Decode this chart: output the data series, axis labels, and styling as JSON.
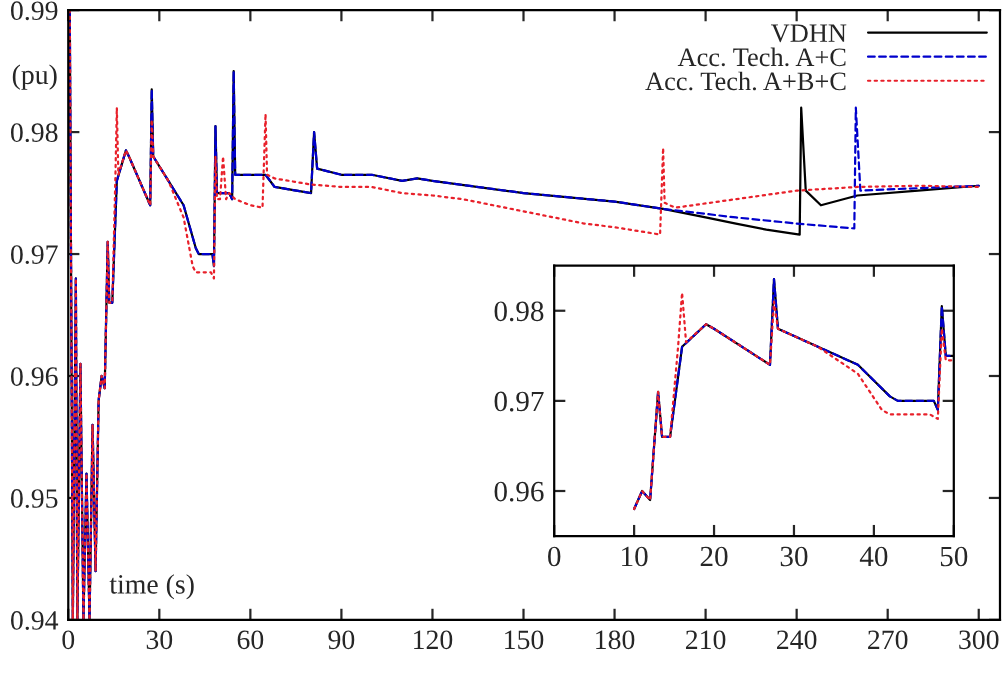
{
  "chart_data": [
    {
      "type": "line",
      "xlabel": "time (s)",
      "ylabel": "(pu)",
      "xlim": [
        0,
        307
      ],
      "ylim": [
        0.94,
        0.99
      ],
      "xticks": [
        0,
        30,
        60,
        90,
        120,
        150,
        180,
        210,
        240,
        270,
        300
      ],
      "yticks": [
        0.94,
        0.95,
        0.96,
        0.97,
        0.98,
        0.99
      ],
      "legend": "top right",
      "grid": false,
      "series": [
        {
          "name": "VDHN",
          "color": "#000000",
          "line_style": "solid",
          "x": [
            0.5,
            1.5,
            2.5,
            3,
            4,
            5,
            6,
            7,
            8,
            9,
            10,
            11,
            12,
            13,
            13.5,
            14.5,
            16,
            19,
            20,
            27,
            27.5,
            28,
            33,
            38,
            42,
            43,
            47.5,
            48,
            48.5,
            49,
            53,
            54,
            54.5,
            55,
            65,
            68,
            80,
            81,
            82,
            90,
            100,
            110,
            115,
            120,
            150,
            180,
            196,
            210,
            220,
            230,
            241,
            241.5,
            243,
            248,
            260,
            280,
            300
          ],
          "values": [
            0.99,
            0.94,
            0.968,
            0.94,
            0.961,
            0.94,
            0.952,
            0.94,
            0.956,
            0.944,
            0.958,
            0.96,
            0.959,
            0.971,
            0.966,
            0.966,
            0.976,
            0.9785,
            0.978,
            0.974,
            0.9835,
            0.978,
            0.976,
            0.974,
            0.9705,
            0.97,
            0.97,
            0.969,
            0.9805,
            0.975,
            0.975,
            0.9745,
            0.985,
            0.9765,
            0.9765,
            0.9755,
            0.975,
            0.98,
            0.977,
            0.9765,
            0.9765,
            0.976,
            0.9762,
            0.976,
            0.975,
            0.9743,
            0.9737,
            0.973,
            0.9725,
            0.972,
            0.9716,
            0.982,
            0.9752,
            0.974,
            0.9748,
            0.9752,
            0.9756
          ]
        },
        {
          "name": "Acc. Tech. A+C",
          "color": "#0000cc",
          "line_style": "dashed",
          "x": [
            0.5,
            1.5,
            2.5,
            3,
            4,
            5,
            6,
            7,
            8,
            9,
            10,
            11,
            12,
            13,
            13.5,
            14.5,
            16,
            19,
            20,
            27,
            27.5,
            28,
            33,
            38,
            42,
            43,
            47.5,
            48,
            48.5,
            49,
            53,
            54,
            54.5,
            55,
            65,
            68,
            80,
            81,
            82,
            90,
            100,
            110,
            115,
            120,
            150,
            180,
            196,
            220,
            240,
            259,
            259.5,
            261,
            280,
            300
          ],
          "values": [
            0.99,
            0.94,
            0.968,
            0.94,
            0.961,
            0.94,
            0.952,
            0.94,
            0.956,
            0.944,
            0.958,
            0.96,
            0.959,
            0.971,
            0.966,
            0.966,
            0.976,
            0.9785,
            0.978,
            0.974,
            0.9835,
            0.978,
            0.976,
            0.974,
            0.9705,
            0.97,
            0.97,
            0.969,
            0.9805,
            0.975,
            0.975,
            0.9745,
            0.985,
            0.9765,
            0.9765,
            0.9755,
            0.975,
            0.98,
            0.977,
            0.9765,
            0.9765,
            0.976,
            0.9762,
            0.976,
            0.975,
            0.9743,
            0.9737,
            0.973,
            0.9725,
            0.9721,
            0.982,
            0.9752,
            0.9754,
            0.9756
          ]
        },
        {
          "name": "Acc. Tech. A+B+C",
          "color": "#e8202a",
          "line_style": "dotted",
          "x": [
            0.5,
            1.5,
            2.5,
            3,
            4,
            5,
            6,
            7,
            8,
            9,
            10,
            11,
            12,
            13,
            13.5,
            14.5,
            15.5,
            16,
            16.5,
            19,
            20,
            27,
            27.5,
            28,
            33,
            38,
            41,
            42,
            47,
            48,
            48.5,
            49,
            50,
            51,
            52,
            53,
            55,
            60,
            64,
            65,
            65.5,
            68,
            80,
            90,
            100,
            110,
            120,
            130,
            140,
            150,
            160,
            170,
            180,
            190,
            195,
            196,
            196.5,
            200,
            220,
            240,
            260,
            280,
            300
          ],
          "values": [
            0.99,
            0.94,
            0.968,
            0.94,
            0.961,
            0.94,
            0.952,
            0.94,
            0.956,
            0.944,
            0.958,
            0.96,
            0.959,
            0.971,
            0.966,
            0.966,
            0.976,
            0.982,
            0.9765,
            0.9785,
            0.978,
            0.974,
            0.981,
            0.978,
            0.976,
            0.973,
            0.969,
            0.9685,
            0.9685,
            0.968,
            0.978,
            0.9745,
            0.9745,
            0.978,
            0.9745,
            0.975,
            0.9745,
            0.974,
            0.9738,
            0.9815,
            0.9765,
            0.9762,
            0.9757,
            0.9755,
            0.9755,
            0.975,
            0.9748,
            0.9745,
            0.974,
            0.9735,
            0.973,
            0.9725,
            0.9722,
            0.9718,
            0.9716,
            0.9787,
            0.9742,
            0.9738,
            0.9745,
            0.9752,
            0.9755,
            0.9756,
            0.9755
          ]
        }
      ]
    },
    {
      "type": "line",
      "xlim": [
        0,
        50
      ],
      "ylim": [
        0.955,
        0.985
      ],
      "xticks": [
        0,
        10,
        20,
        30,
        40,
        50
      ],
      "yticks": [
        0.96,
        0.97,
        0.98
      ],
      "grid": false,
      "series": [
        {
          "color": "#000000",
          "line_style": "solid",
          "x": [
            10,
            11,
            12,
            13,
            13.5,
            14.5,
            16,
            19,
            20,
            27,
            27.5,
            28,
            33,
            38,
            42,
            43,
            47.5,
            48,
            48.5,
            49,
            50
          ],
          "values": [
            0.958,
            0.96,
            0.959,
            0.971,
            0.966,
            0.966,
            0.976,
            0.9785,
            0.978,
            0.974,
            0.9835,
            0.978,
            0.976,
            0.974,
            0.9705,
            0.97,
            0.97,
            0.969,
            0.9805,
            0.975,
            0.975
          ]
        },
        {
          "color": "#0000cc",
          "line_style": "dashed",
          "x": [
            10,
            11,
            12,
            13,
            13.5,
            14.5,
            16,
            19,
            20,
            27,
            27.5,
            28,
            33,
            38,
            42,
            43,
            47.5,
            48,
            48.5,
            49,
            50
          ],
          "values": [
            0.958,
            0.96,
            0.959,
            0.971,
            0.966,
            0.966,
            0.976,
            0.9785,
            0.978,
            0.974,
            0.9835,
            0.978,
            0.976,
            0.974,
            0.9705,
            0.97,
            0.97,
            0.969,
            0.9805,
            0.975,
            0.975
          ]
        },
        {
          "color": "#e8202a",
          "line_style": "dotted",
          "x": [
            10,
            11,
            12,
            13,
            13.5,
            14.5,
            15.5,
            16,
            16.5,
            19,
            20,
            27,
            27.5,
            28,
            33,
            38,
            41,
            42,
            47,
            48,
            48.5,
            49,
            50
          ],
          "values": [
            0.958,
            0.96,
            0.959,
            0.971,
            0.966,
            0.966,
            0.976,
            0.982,
            0.9765,
            0.9785,
            0.978,
            0.974,
            0.981,
            0.978,
            0.976,
            0.973,
            0.969,
            0.9685,
            0.9685,
            0.968,
            0.978,
            0.9745,
            0.9745
          ]
        }
      ]
    }
  ]
}
